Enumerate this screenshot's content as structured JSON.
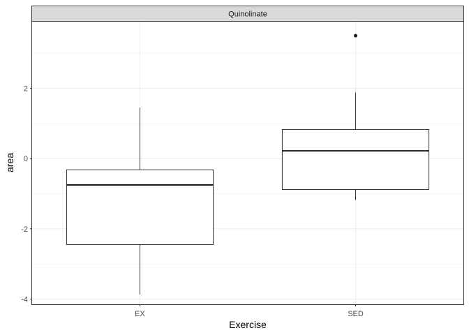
{
  "chart_data": {
    "type": "boxplot",
    "facet": "Quinolinate",
    "xlabel": "Exercise",
    "ylabel": "area",
    "categories": [
      "EX",
      "SED"
    ],
    "yticks": [
      -4,
      -2,
      0,
      2
    ],
    "ylim": [
      -4.15,
      3.9
    ],
    "grid": true,
    "boxes": [
      {
        "category": "EX",
        "whisker_low": -3.87,
        "q1": -2.45,
        "median": -0.75,
        "q3": -0.32,
        "whisker_high": 1.45,
        "outliers": []
      },
      {
        "category": "SED",
        "whisker_low": -1.18,
        "q1": -0.88,
        "median": 0.22,
        "q3": 0.83,
        "whisker_high": 1.88,
        "outliers": [
          3.5
        ]
      }
    ]
  }
}
